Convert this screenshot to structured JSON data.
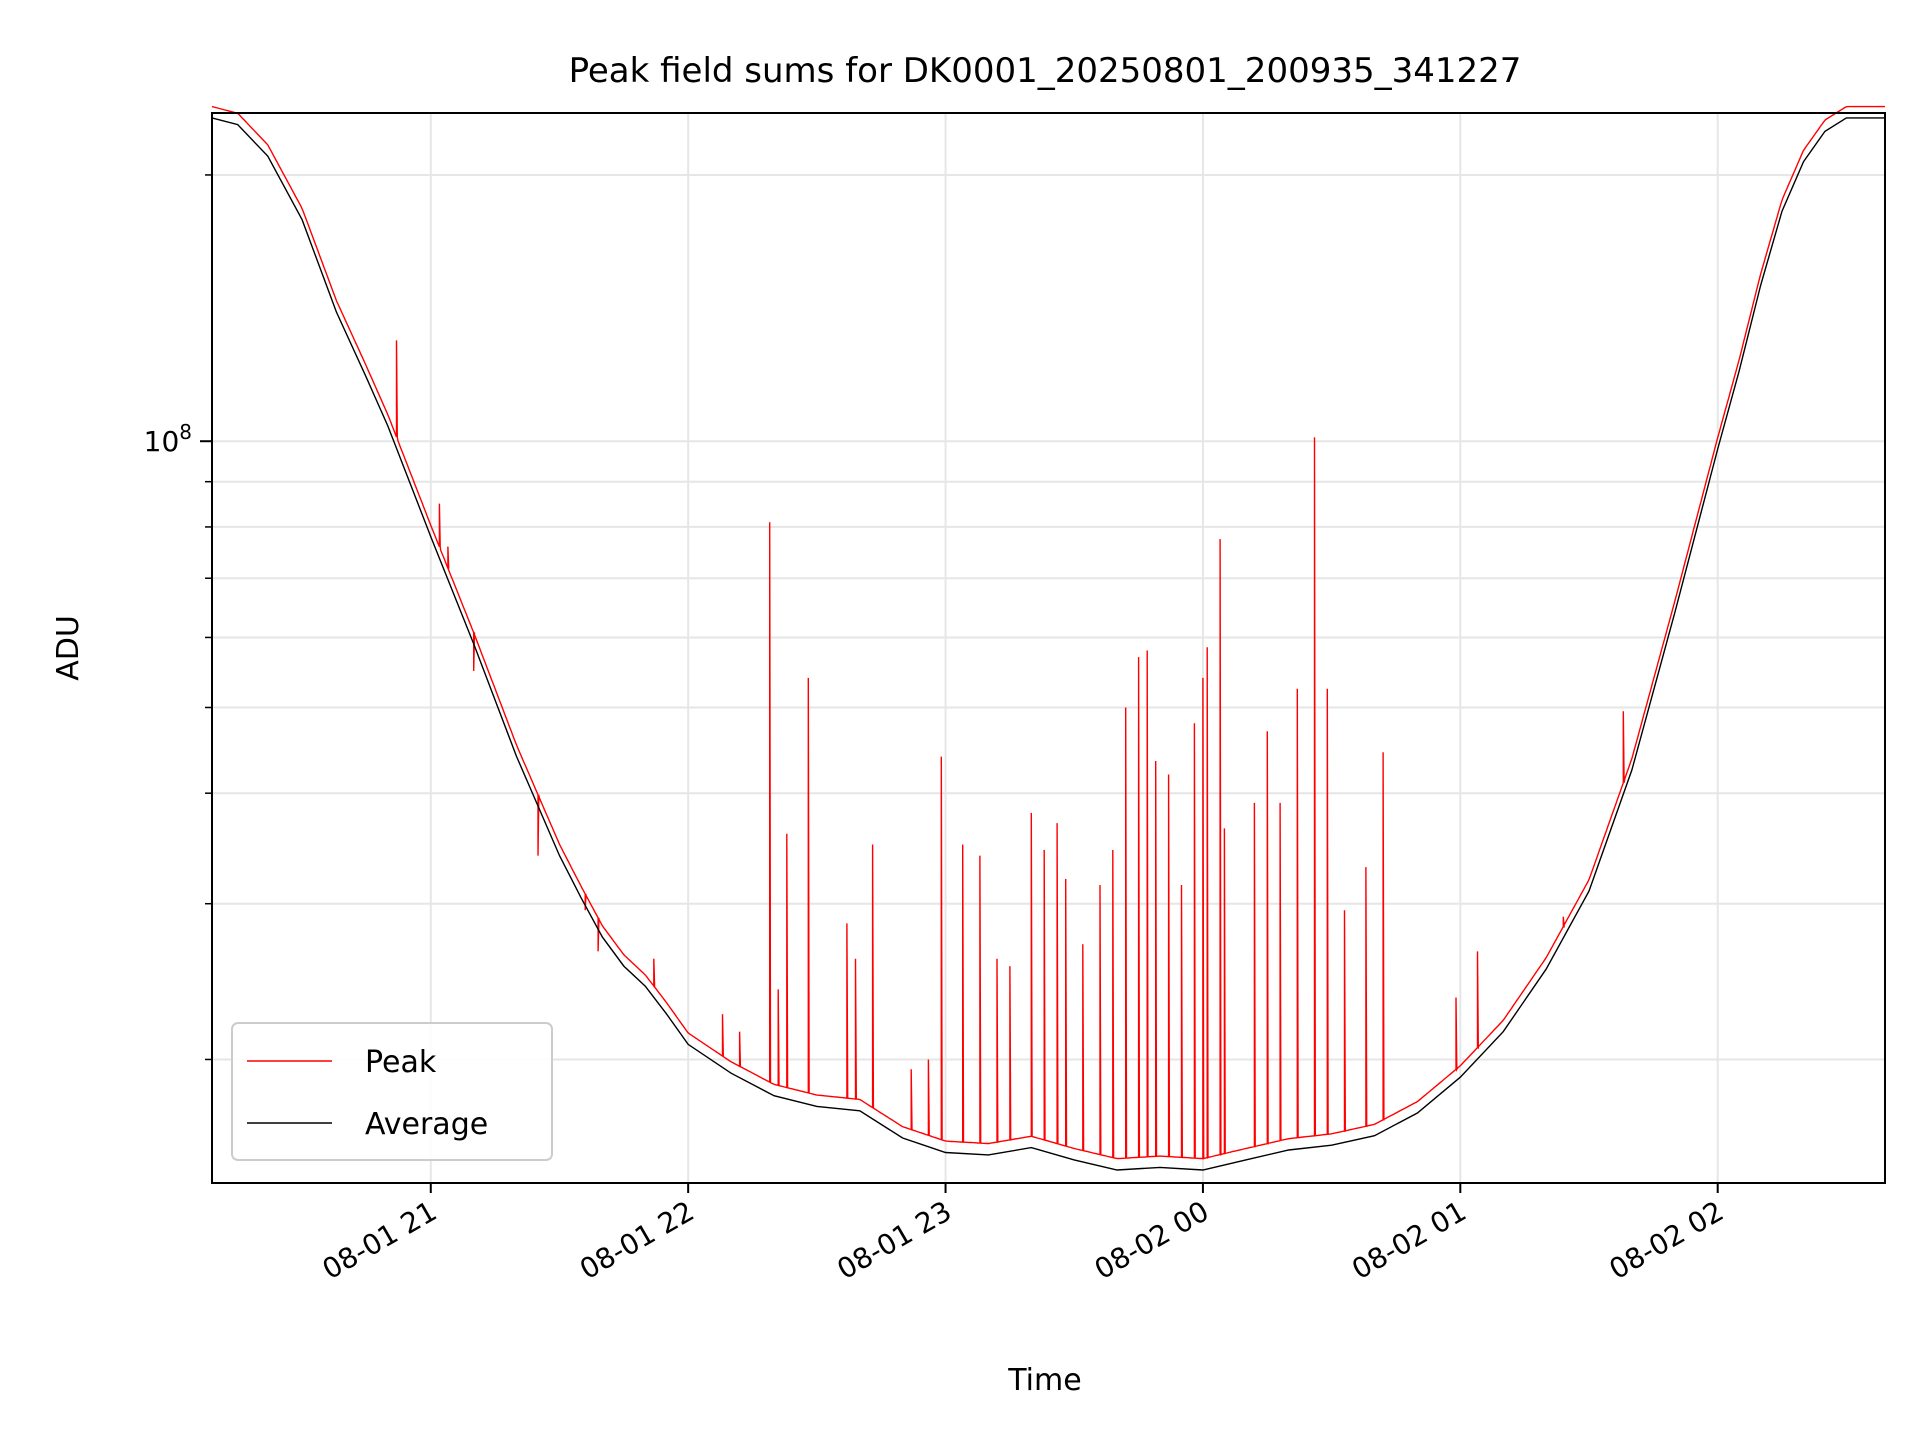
{
  "chart_data": {
    "type": "line",
    "title": "Peak field sums for DK0001_20250801_200935_341227",
    "xlabel": "Time",
    "ylabel": "ADU",
    "yscale": "log",
    "grid": true,
    "legend_position": "lower-left",
    "xlim": [
      "2025-08-01 20:09",
      "2025-08-02 02:39"
    ],
    "ylim": [
      14500000,
      235000000
    ],
    "x_ticks": [
      {
        "t": "2025-08-01 21:00",
        "label": "08-01 21"
      },
      {
        "t": "2025-08-01 22:00",
        "label": "08-01 22"
      },
      {
        "t": "2025-08-01 23:00",
        "label": "08-01 23"
      },
      {
        "t": "2025-08-02 00:00",
        "label": "08-02 00"
      },
      {
        "t": "2025-08-02 01:00",
        "label": "08-02 01"
      },
      {
        "t": "2025-08-02 02:00",
        "label": "08-02 02"
      }
    ],
    "y_major_ticks": [
      {
        "value": 100000000,
        "label_base": "10",
        "label_exp": "8"
      }
    ],
    "y_minor_ticks": [
      20000000,
      30000000,
      40000000,
      50000000,
      60000000,
      70000000,
      80000000,
      90000000,
      200000000
    ],
    "series": [
      {
        "name": "Average",
        "color": "#000000",
        "points": [
          [
            "2025-08-01 20:09",
            232000000
          ],
          [
            "2025-08-01 20:15",
            228000000
          ],
          [
            "2025-08-01 20:22",
            210000000
          ],
          [
            "2025-08-01 20:30",
            178000000
          ],
          [
            "2025-08-01 20:38",
            140000000
          ],
          [
            "2025-08-01 20:45",
            118000000
          ],
          [
            "2025-08-01 20:50",
            104000000
          ],
          [
            "2025-08-01 21:00",
            78000000
          ],
          [
            "2025-08-01 21:10",
            59000000
          ],
          [
            "2025-08-01 21:20",
            44000000
          ],
          [
            "2025-08-01 21:30",
            34000000
          ],
          [
            "2025-08-01 21:35",
            30500000
          ],
          [
            "2025-08-01 21:40",
            27500000
          ],
          [
            "2025-08-01 21:45",
            25500000
          ],
          [
            "2025-08-01 21:50",
            24200000
          ],
          [
            "2025-08-01 21:55",
            22500000
          ],
          [
            "2025-08-01 22:00",
            20800000
          ],
          [
            "2025-08-01 22:10",
            19300000
          ],
          [
            "2025-08-01 22:20",
            18200000
          ],
          [
            "2025-08-01 22:30",
            17700000
          ],
          [
            "2025-08-01 22:40",
            17500000
          ],
          [
            "2025-08-01 22:50",
            16300000
          ],
          [
            "2025-08-01 23:00",
            15700000
          ],
          [
            "2025-08-01 23:10",
            15600000
          ],
          [
            "2025-08-01 23:20",
            15900000
          ],
          [
            "2025-08-01 23:30",
            15400000
          ],
          [
            "2025-08-01 23:40",
            15000000
          ],
          [
            "2025-08-01 23:50",
            15100000
          ],
          [
            "2025-08-02 00:00",
            15000000
          ],
          [
            "2025-08-02 00:10",
            15400000
          ],
          [
            "2025-08-02 00:20",
            15800000
          ],
          [
            "2025-08-02 00:30",
            16000000
          ],
          [
            "2025-08-02 00:40",
            16400000
          ],
          [
            "2025-08-02 00:50",
            17400000
          ],
          [
            "2025-08-02 01:00",
            19100000
          ],
          [
            "2025-08-02 01:10",
            21500000
          ],
          [
            "2025-08-02 01:20",
            25300000
          ],
          [
            "2025-08-02 01:30",
            31000000
          ],
          [
            "2025-08-02 01:40",
            42500000
          ],
          [
            "2025-08-02 01:50",
            64000000
          ],
          [
            "2025-08-02 02:00",
            98000000
          ],
          [
            "2025-08-02 02:05",
            120000000
          ],
          [
            "2025-08-02 02:10",
            150000000
          ],
          [
            "2025-08-02 02:15",
            182000000
          ],
          [
            "2025-08-02 02:20",
            207000000
          ],
          [
            "2025-08-02 02:25",
            224000000
          ],
          [
            "2025-08-02 02:30",
            232000000
          ],
          [
            "2025-08-02 02:39",
            232000000
          ]
        ]
      },
      {
        "name": "Peak",
        "color": "#ff0000",
        "follows": "Average",
        "spikes": [
          [
            "2025-08-01 20:52",
            130000000
          ],
          [
            "2025-08-01 21:02",
            85000000
          ],
          [
            "2025-08-01 21:04",
            76000000
          ],
          [
            "2025-08-01 21:10",
            55000000
          ],
          [
            "2025-08-01 21:25",
            34000000
          ],
          [
            "2025-08-01 21:36",
            29500000
          ],
          [
            "2025-08-01 21:39",
            26500000
          ],
          [
            "2025-08-01 21:52",
            26000000
          ],
          [
            "2025-08-01 22:08",
            22500000
          ],
          [
            "2025-08-01 22:12",
            21500000
          ],
          [
            "2025-08-01 22:19",
            81000000
          ],
          [
            "2025-08-01 22:21",
            24000000
          ],
          [
            "2025-08-01 22:23",
            36000000
          ],
          [
            "2025-08-01 22:28",
            54000000
          ],
          [
            "2025-08-01 22:37",
            28500000
          ],
          [
            "2025-08-01 22:39",
            26000000
          ],
          [
            "2025-08-01 22:43",
            35000000
          ],
          [
            "2025-08-01 22:52",
            19500000
          ],
          [
            "2025-08-01 22:56",
            20000000
          ],
          [
            "2025-08-01 22:59",
            44000000
          ],
          [
            "2025-08-01 23:04",
            35000000
          ],
          [
            "2025-08-01 23:08",
            34000000
          ],
          [
            "2025-08-01 23:12",
            26000000
          ],
          [
            "2025-08-01 23:15",
            25500000
          ],
          [
            "2025-08-01 23:20",
            38000000
          ],
          [
            "2025-08-01 23:23",
            34500000
          ],
          [
            "2025-08-01 23:26",
            37000000
          ],
          [
            "2025-08-01 23:28",
            32000000
          ],
          [
            "2025-08-01 23:32",
            27000000
          ],
          [
            "2025-08-01 23:36",
            31500000
          ],
          [
            "2025-08-01 23:39",
            34500000
          ],
          [
            "2025-08-01 23:42",
            50000000
          ],
          [
            "2025-08-01 23:45",
            57000000
          ],
          [
            "2025-08-01 23:47",
            58000000
          ],
          [
            "2025-08-01 23:49",
            43500000
          ],
          [
            "2025-08-01 23:52",
            42000000
          ],
          [
            "2025-08-01 23:55",
            31500000
          ],
          [
            "2025-08-01 23:58",
            48000000
          ],
          [
            "2025-08-02 00:00",
            54000000
          ],
          [
            "2025-08-02 00:01",
            58500000
          ],
          [
            "2025-08-02 00:04",
            77500000
          ],
          [
            "2025-08-02 00:05",
            36500000
          ],
          [
            "2025-08-02 00:12",
            39000000
          ],
          [
            "2025-08-02 00:15",
            47000000
          ],
          [
            "2025-08-02 00:18",
            39000000
          ],
          [
            "2025-08-02 00:22",
            52500000
          ],
          [
            "2025-08-02 00:26",
            101000000
          ],
          [
            "2025-08-02 00:29",
            52500000
          ],
          [
            "2025-08-02 00:33",
            29500000
          ],
          [
            "2025-08-02 00:38",
            33000000
          ],
          [
            "2025-08-02 00:42",
            44500000
          ],
          [
            "2025-08-02 00:59",
            23500000
          ],
          [
            "2025-08-02 01:04",
            26500000
          ],
          [
            "2025-08-02 01:24",
            29000000
          ],
          [
            "2025-08-02 01:38",
            49500000
          ]
        ]
      }
    ]
  }
}
